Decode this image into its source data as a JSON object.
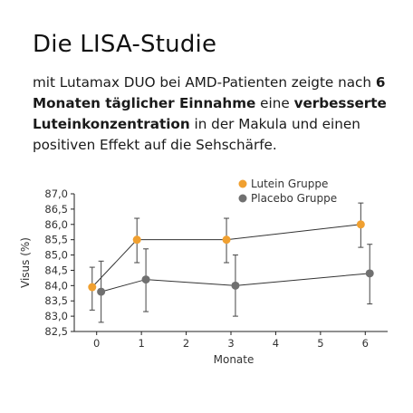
{
  "heading": "Die LISA-Studie",
  "description": {
    "part1": "mit Lutamax DUO bei AMD-Patienten zeigte nach ",
    "bold1": "6 Monaten täglicher Einnahme",
    "part2": " eine ",
    "bold2": "verbesserte Luteinkonzentration",
    "part3": " in der Makula und einen positiven Effekt auf die Sehschärfe."
  },
  "chart_data": {
    "type": "line",
    "x": [
      0,
      1,
      3,
      6
    ],
    "xlabel": "Monate",
    "ylabel": "Visus (%)",
    "xlim": [
      -0.5,
      6.5
    ],
    "ylim": [
      82.5,
      87.0
    ],
    "xticks": [
      "0",
      "1",
      "2",
      "3",
      "4",
      "5",
      "6"
    ],
    "yticks": [
      "87,0",
      "86,5",
      "86,0",
      "85,5",
      "85,0",
      "84,5",
      "84,0",
      "83,5",
      "83,0",
      "82,5"
    ],
    "grid": false,
    "legend_position": "top-right",
    "series": [
      {
        "name": "Lutein Gruppe",
        "color": "#f0a030",
        "x": [
          -0.1,
          0.9,
          2.9,
          5.9
        ],
        "values": [
          83.95,
          85.5,
          85.5,
          86.0
        ],
        "error_low": [
          83.2,
          84.75,
          84.75,
          85.25
        ],
        "error_high": [
          84.6,
          86.2,
          86.2,
          86.7
        ]
      },
      {
        "name": "Placebo Gruppe",
        "color": "#707070",
        "x": [
          0.1,
          1.1,
          3.1,
          6.1
        ],
        "values": [
          83.8,
          84.2,
          84.0,
          84.4
        ],
        "error_low": [
          82.8,
          83.15,
          83.0,
          83.4
        ],
        "error_high": [
          84.8,
          85.2,
          85.0,
          85.35
        ]
      }
    ]
  }
}
